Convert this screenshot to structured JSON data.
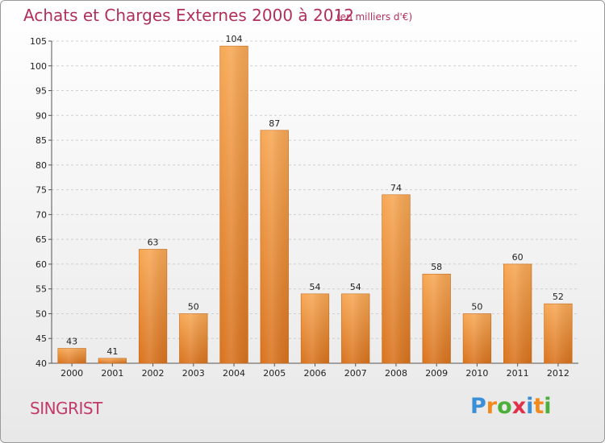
{
  "header": {
    "title": "Achats et Charges Externes 2000 à 2012",
    "unit": "(en milliers d'€)"
  },
  "footer": {
    "commune": "SINGRIST",
    "logo_letters": [
      "P",
      "r",
      "o",
      "x",
      "i",
      "t",
      "i"
    ],
    "logo_colors": [
      "#3a8fd6",
      "#f08a1c",
      "#4caf3a",
      "#e0304a",
      "#3a8fd6",
      "#f08a1c",
      "#4caf3a"
    ]
  },
  "chart_data": {
    "type": "bar",
    "title": "Achats et Charges Externes 2000 à 2012",
    "subtitle": "(en milliers d'€)",
    "categories": [
      "2000",
      "2001",
      "2002",
      "2003",
      "2004",
      "2005",
      "2006",
      "2007",
      "2008",
      "2009",
      "2010",
      "2011",
      "2012"
    ],
    "values": [
      43,
      41,
      63,
      50,
      104,
      87,
      54,
      54,
      74,
      58,
      50,
      60,
      52
    ],
    "ylim": [
      40,
      105
    ],
    "yticks": [
      40,
      45,
      50,
      55,
      60,
      65,
      70,
      75,
      80,
      85,
      90,
      95,
      100,
      105
    ],
    "grid": true,
    "bar_color_top": "#f7a855",
    "bar_color_bottom": "#d9731e"
  }
}
